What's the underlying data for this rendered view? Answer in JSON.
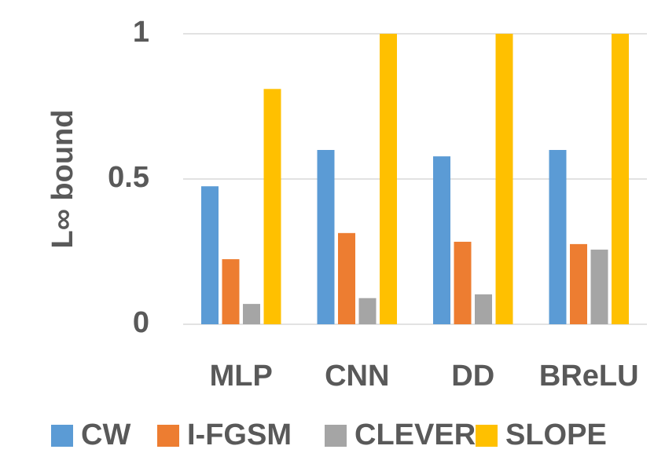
{
  "chart_data": {
    "type": "bar",
    "y_label": "L∞ bound",
    "categories": [
      "MLP",
      "CNN",
      "DD",
      "BReLU"
    ],
    "series": [
      {
        "name": "CW",
        "color": "#5b9bd5",
        "values": [
          0.475,
          0.6,
          0.578,
          0.6
        ]
      },
      {
        "name": "I-FGSM",
        "color": "#ed7d31",
        "values": [
          0.224,
          0.314,
          0.284,
          0.276
        ]
      },
      {
        "name": "CLEVER",
        "color": "#a5a5a5",
        "values": [
          0.07,
          0.09,
          0.103,
          0.257
        ]
      },
      {
        "name": "SLOPE",
        "color": "#ffc000",
        "values": [
          0.81,
          1,
          1,
          1
        ]
      }
    ],
    "ylim": [
      0,
      1
    ],
    "yticks": [
      0,
      0.5,
      1
    ],
    "grid": true,
    "legend": "bottom"
  }
}
